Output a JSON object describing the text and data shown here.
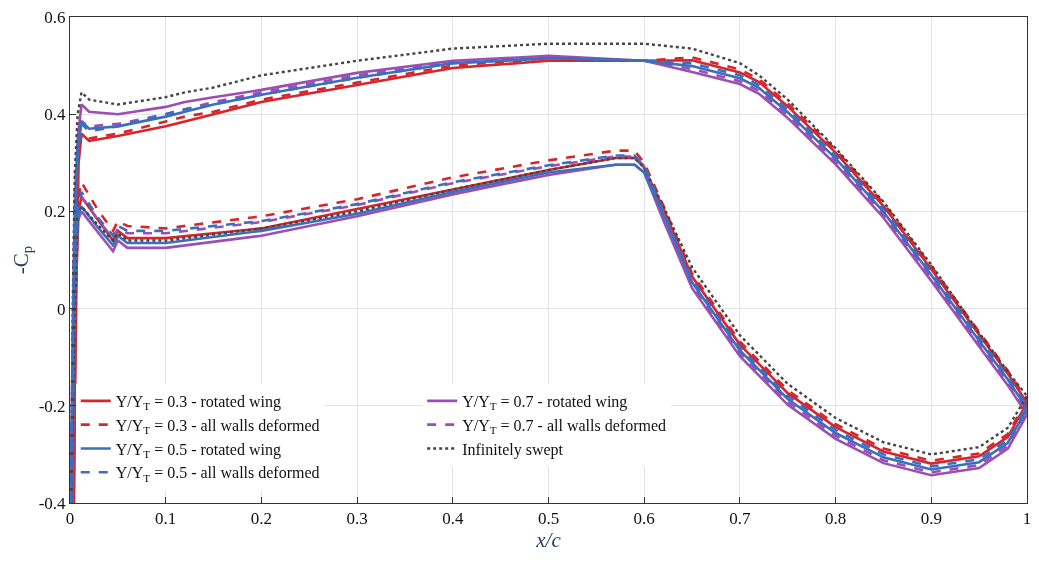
{
  "chart_data": {
    "type": "line",
    "xlabel": "x/c",
    "ylabel": "-C$_{p}$",
    "series": [
      {
        "name": "Y/Y$_{T}$ = 0.3 - rotated wing",
        "color": "#d7262b",
        "line_style": "solid",
        "x": [
          0.004,
          0.0055,
          0.007,
          0.009,
          0.012,
          0.02,
          0.05,
          0.1,
          0.12,
          0.15,
          0.2,
          0.3,
          0.4,
          0.5,
          0.6,
          0.65,
          0.7,
          0.72,
          0.75,
          0.8,
          0.85,
          0.9,
          0.95,
          0.98,
          1.0
        ],
        "values": [
          -0.4,
          -0.15,
          0.1,
          0.3,
          0.36,
          0.345,
          0.355,
          0.375,
          0.385,
          0.4,
          0.425,
          0.46,
          0.495,
          0.51,
          0.51,
          0.511,
          0.486,
          0.466,
          0.416,
          0.321,
          0.211,
          0.081,
          -0.054,
          -0.134,
          -0.194
        ]
      },
      {
        "color": "#d7262b",
        "line_style": "solid",
        "x": [
          0.004,
          0.0055,
          0.009,
          0.012,
          0.03,
          0.045,
          0.05,
          0.06,
          0.1,
          0.2,
          0.3,
          0.4,
          0.5,
          0.57,
          0.59,
          0.6,
          0.62,
          0.65,
          0.7,
          0.75,
          0.8,
          0.85,
          0.9,
          0.95,
          0.98,
          1.0
        ],
        "values": [
          -0.4,
          0.0,
          0.2,
          0.23,
          0.18,
          0.14,
          0.16,
          0.145,
          0.145,
          0.165,
          0.205,
          0.245,
          0.285,
          0.31,
          0.31,
          0.29,
          0.206,
          0.066,
          -0.074,
          -0.174,
          -0.244,
          -0.294,
          -0.319,
          -0.304,
          -0.264,
          -0.194
        ]
      },
      {
        "name": "Y/Y$_{T}$ = 0.7 - rotated wing",
        "color": "#9b4fb5",
        "line_style": "solid",
        "x": [
          0.0005,
          0.003,
          0.005,
          0.008,
          0.012,
          0.02,
          0.05,
          0.1,
          0.12,
          0.15,
          0.2,
          0.3,
          0.4,
          0.5,
          0.6,
          0.65,
          0.7,
          0.72,
          0.75,
          0.8,
          0.85,
          0.9,
          0.95,
          0.98,
          1.0
        ],
        "values": [
          -0.4,
          -0.03,
          0.22,
          0.35,
          0.42,
          0.405,
          0.4,
          0.415,
          0.425,
          0.435,
          0.45,
          0.485,
          0.51,
          0.52,
          0.51,
          0.487,
          0.462,
          0.442,
          0.392,
          0.297,
          0.187,
          0.057,
          -0.078,
          -0.158,
          -0.218
        ]
      },
      {
        "color": "#9b4fb5",
        "line_style": "solid",
        "x": [
          0.0005,
          0.004,
          0.008,
          0.012,
          0.03,
          0.045,
          0.05,
          0.06,
          0.1,
          0.2,
          0.3,
          0.4,
          0.5,
          0.57,
          0.59,
          0.6,
          0.62,
          0.65,
          0.7,
          0.75,
          0.8,
          0.85,
          0.9,
          0.95,
          0.98,
          1.0
        ],
        "values": [
          -0.4,
          -0.06,
          0.18,
          0.2,
          0.155,
          0.118,
          0.14,
          0.125,
          0.125,
          0.15,
          0.19,
          0.235,
          0.275,
          0.296,
          0.296,
          0.28,
          0.182,
          0.042,
          -0.098,
          -0.198,
          -0.268,
          -0.318,
          -0.343,
          -0.328,
          -0.288,
          -0.218
        ]
      },
      {
        "name": "Y/Y$_{T}$ = 0.3 - all walls deformed",
        "color": "#d7262b",
        "line_style": "dashed",
        "x": [
          0.002,
          0.003,
          0.005,
          0.008,
          0.012,
          0.02,
          0.05,
          0.1,
          0.12,
          0.15,
          0.2,
          0.3,
          0.4,
          0.5,
          0.6,
          0.65,
          0.7,
          0.72,
          0.75,
          0.8,
          0.85,
          0.9,
          0.95,
          0.98,
          1.0
        ],
        "values": [
          -0.4,
          -0.12,
          0.13,
          0.3,
          0.36,
          0.35,
          0.36,
          0.385,
          0.395,
          0.405,
          0.43,
          0.465,
          0.5,
          0.515,
          0.51,
          0.517,
          0.492,
          0.472,
          0.422,
          0.327,
          0.217,
          0.087,
          -0.048,
          -0.128,
          -0.188
        ]
      },
      {
        "color": "#d7262b",
        "line_style": "dashed",
        "x": [
          0.002,
          0.004,
          0.008,
          0.012,
          0.03,
          0.045,
          0.05,
          0.06,
          0.1,
          0.2,
          0.3,
          0.4,
          0.5,
          0.57,
          0.59,
          0.6,
          0.62,
          0.65,
          0.7,
          0.75,
          0.8,
          0.85,
          0.9,
          0.95,
          0.98,
          1.0
        ],
        "values": [
          -0.4,
          0.03,
          0.22,
          0.26,
          0.2,
          0.16,
          0.18,
          0.17,
          0.165,
          0.19,
          0.225,
          0.27,
          0.305,
          0.325,
          0.325,
          0.3,
          0.212,
          0.072,
          -0.068,
          -0.168,
          -0.238,
          -0.288,
          -0.313,
          -0.298,
          -0.258,
          -0.188
        ]
      },
      {
        "name": "Y/Y$_{T}$ = 0.7 - all walls deformed",
        "color": "#9b4fb5",
        "line_style": "dashed",
        "x": [
          0.0028,
          0.0035,
          0.005,
          0.008,
          0.012,
          0.02,
          0.05,
          0.1,
          0.12,
          0.15,
          0.2,
          0.3,
          0.4,
          0.5,
          0.6,
          0.65,
          0.7,
          0.72,
          0.75,
          0.8,
          0.85,
          0.9,
          0.95,
          0.98,
          1.0
        ],
        "values": [
          -0.4,
          0.0,
          0.25,
          0.33,
          0.385,
          0.375,
          0.38,
          0.4,
          0.41,
          0.425,
          0.445,
          0.48,
          0.508,
          0.518,
          0.51,
          0.493,
          0.468,
          0.448,
          0.398,
          0.303,
          0.193,
          0.063,
          -0.072,
          -0.152,
          -0.212
        ]
      },
      {
        "color": "#9b4fb5",
        "line_style": "dashed",
        "x": [
          0.0028,
          0.004,
          0.008,
          0.012,
          0.03,
          0.045,
          0.05,
          0.06,
          0.1,
          0.2,
          0.3,
          0.4,
          0.5,
          0.57,
          0.59,
          0.6,
          0.62,
          0.65,
          0.7,
          0.75,
          0.8,
          0.85,
          0.9,
          0.95,
          0.98,
          1.0
        ],
        "values": [
          -0.4,
          0.09,
          0.2,
          0.23,
          0.18,
          0.145,
          0.165,
          0.155,
          0.155,
          0.178,
          0.213,
          0.258,
          0.293,
          0.313,
          0.313,
          0.293,
          0.188,
          0.048,
          -0.092,
          -0.192,
          -0.262,
          -0.312,
          -0.337,
          -0.322,
          -0.282,
          -0.212
        ]
      },
      {
        "name": "Y/Y$_{T}$ = 0.5 - rotated wing",
        "color": "#3a6fc0",
        "line_style": "solid",
        "x": [
          0.0025,
          0.003,
          0.005,
          0.008,
          0.012,
          0.02,
          0.05,
          0.1,
          0.12,
          0.15,
          0.2,
          0.3,
          0.4,
          0.5,
          0.6,
          0.65,
          0.7,
          0.72,
          0.75,
          0.8,
          0.85,
          0.9,
          0.95,
          0.98,
          1.0
        ],
        "values": [
          -0.4,
          -0.09,
          0.16,
          0.32,
          0.385,
          0.37,
          0.375,
          0.395,
          0.405,
          0.42,
          0.44,
          0.475,
          0.505,
          0.515,
          0.51,
          0.499,
          0.474,
          0.454,
          0.404,
          0.309,
          0.199,
          0.069,
          -0.066,
          -0.146,
          -0.206
        ]
      },
      {
        "color": "#3a6fc0",
        "line_style": "solid",
        "x": [
          0.0025,
          0.004,
          0.008,
          0.012,
          0.03,
          0.045,
          0.05,
          0.06,
          0.1,
          0.2,
          0.3,
          0.4,
          0.5,
          0.57,
          0.59,
          0.6,
          0.62,
          0.65,
          0.7,
          0.75,
          0.8,
          0.85,
          0.9,
          0.95,
          0.98,
          1.0
        ],
        "values": [
          -0.4,
          -0.03,
          0.19,
          0.21,
          0.165,
          0.13,
          0.15,
          0.135,
          0.135,
          0.16,
          0.195,
          0.24,
          0.28,
          0.296,
          0.296,
          0.28,
          0.194,
          0.054,
          -0.086,
          -0.186,
          -0.256,
          -0.306,
          -0.331,
          -0.316,
          -0.276,
          -0.206
        ]
      },
      {
        "name": "Infinitely swept",
        "color": "#444444",
        "line_style": "dotted",
        "x": [
          0.0012,
          0.003,
          0.005,
          0.008,
          0.012,
          0.02,
          0.05,
          0.1,
          0.12,
          0.15,
          0.2,
          0.3,
          0.4,
          0.5,
          0.6,
          0.65,
          0.7,
          0.72,
          0.75,
          0.8,
          0.85,
          0.9,
          0.95,
          0.98,
          1.0
        ],
        "values": [
          -0.4,
          0.03,
          0.28,
          0.4,
          0.445,
          0.43,
          0.42,
          0.435,
          0.445,
          0.455,
          0.48,
          0.51,
          0.535,
          0.545,
          0.545,
          0.535,
          0.505,
          0.48,
          0.43,
          0.33,
          0.22,
          0.09,
          -0.05,
          -0.13,
          -0.18
        ]
      },
      {
        "color": "#444444",
        "line_style": "dotted",
        "x": [
          0.0012,
          0.004,
          0.008,
          0.012,
          0.03,
          0.045,
          0.05,
          0.06,
          0.1,
          0.2,
          0.3,
          0.4,
          0.5,
          0.57,
          0.59,
          0.6,
          0.62,
          0.65,
          0.7,
          0.75,
          0.8,
          0.85,
          0.9,
          0.95,
          0.98,
          1.0
        ],
        "values": [
          -0.4,
          -0.09,
          0.2,
          0.21,
          0.17,
          0.14,
          0.155,
          0.14,
          0.14,
          0.165,
          0.2,
          0.245,
          0.285,
          0.31,
          0.31,
          0.29,
          0.21,
          0.085,
          -0.055,
          -0.155,
          -0.225,
          -0.275,
          -0.3,
          -0.285,
          -0.245,
          -0.18
        ]
      },
      {
        "name": "Y/Y$_{T}$ = 0.5 - all walls deformed",
        "color": "#3a6fc0",
        "line_style": "dashed",
        "x": [
          0.001,
          0.003,
          0.005,
          0.008,
          0.012,
          0.02,
          0.05,
          0.1,
          0.12,
          0.15,
          0.2,
          0.3,
          0.4,
          0.5,
          0.6,
          0.65,
          0.7,
          0.72,
          0.75,
          0.8,
          0.85,
          0.9,
          0.95,
          0.98,
          1.0
        ],
        "values": [
          -0.4,
          -0.06,
          0.19,
          0.32,
          0.38,
          0.365,
          0.375,
          0.4,
          0.41,
          0.42,
          0.44,
          0.475,
          0.505,
          0.515,
          0.51,
          0.505,
          0.48,
          0.46,
          0.41,
          0.315,
          0.205,
          0.075,
          -0.06,
          -0.14,
          -0.2
        ]
      },
      {
        "color": "#3a6fc0",
        "line_style": "dashed",
        "x": [
          0.001,
          0.004,
          0.008,
          0.012,
          0.03,
          0.045,
          0.05,
          0.06,
          0.1,
          0.2,
          0.3,
          0.4,
          0.5,
          0.57,
          0.59,
          0.6,
          0.62,
          0.65,
          0.7,
          0.75,
          0.8,
          0.85,
          0.9,
          0.95,
          0.98,
          1.0
        ],
        "values": [
          -0.4,
          0.06,
          0.2,
          0.24,
          0.185,
          0.15,
          0.17,
          0.16,
          0.16,
          0.18,
          0.215,
          0.26,
          0.295,
          0.315,
          0.315,
          0.295,
          0.2,
          0.06,
          -0.08,
          -0.18,
          -0.25,
          -0.3,
          -0.325,
          -0.31,
          -0.27,
          -0.2
        ]
      }
    ],
    "xlim": [
      0,
      1
    ],
    "xticks": [
      0,
      0.1,
      0.2,
      0.3,
      0.4,
      0.5,
      0.6,
      0.7,
      0.8,
      0.9,
      1
    ],
    "ylim": [
      -0.4,
      0.6
    ],
    "yticks": [
      -0.4,
      -0.2,
      0,
      0.2,
      0.4,
      0.6
    ],
    "grid": true,
    "legend": "bottom left",
    "marker": "none"
  }
}
